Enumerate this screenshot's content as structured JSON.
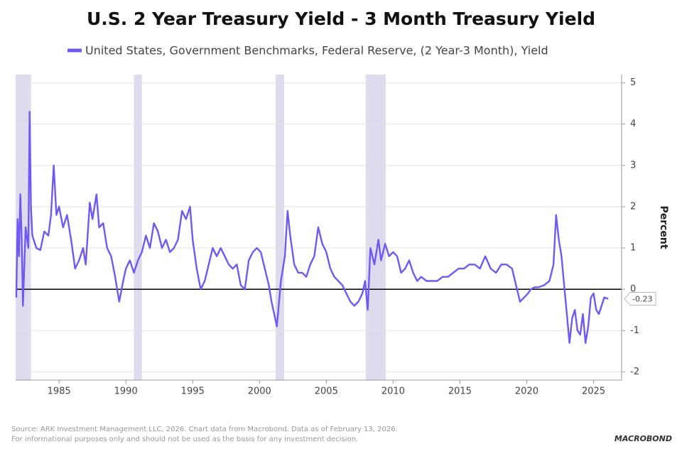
{
  "chart_data": {
    "type": "line",
    "title": "U.S. 2 Year Treasury Yield - 3 Month Treasury Yield",
    "y_axis_label": "Percent",
    "source": "Source: ARK Investment Management LLC, 2026. Chart data from Macrobond. Data as of February 13, 2026.",
    "disclaimer": "For informational purposes only and should not be used as the basis for any investment decision.",
    "logo": "MACROBOND",
    "xlim": [
      1981.75,
      2027.1
    ],
    "xticks": [
      1985,
      1990,
      1995,
      2000,
      2005,
      2010,
      2015,
      2020,
      2025
    ],
    "ylim": [
      -2.2,
      5.2
    ],
    "yticks": [
      5,
      4,
      3,
      2,
      1,
      0,
      -1,
      -2
    ],
    "grid": true,
    "recessions": [
      [
        1981.75,
        1982.9
      ],
      [
        1990.6,
        1991.2
      ],
      [
        2001.2,
        2001.85
      ],
      [
        2007.95,
        2009.45
      ]
    ],
    "x": [
      1981.8,
      1981.9,
      1982.0,
      1982.1,
      1982.2,
      1982.3,
      1982.5,
      1982.7,
      1982.8,
      1982.9,
      1983.0,
      1983.3,
      1983.6,
      1983.9,
      1984.2,
      1984.4,
      1984.6,
      1984.8,
      1985.0,
      1985.3,
      1985.6,
      1985.9,
      1986.2,
      1986.5,
      1986.8,
      1987.0,
      1987.3,
      1987.5,
      1987.8,
      1988.0,
      1988.3,
      1988.6,
      1988.9,
      1989.2,
      1989.5,
      1989.8,
      1990.0,
      1990.3,
      1990.6,
      1990.9,
      1991.2,
      1991.5,
      1991.8,
      1992.1,
      1992.4,
      1992.7,
      1993.0,
      1993.3,
      1993.6,
      1993.9,
      1994.2,
      1994.5,
      1994.8,
      1995.0,
      1995.3,
      1995.6,
      1995.9,
      1996.2,
      1996.5,
      1996.8,
      1997.1,
      1997.4,
      1997.7,
      1998.0,
      1998.3,
      1998.6,
      1998.9,
      1999.2,
      1999.5,
      1999.8,
      2000.1,
      2000.4,
      2000.7,
      2000.9,
      2001.1,
      2001.3,
      2001.6,
      2001.9,
      2002.1,
      2002.3,
      2002.6,
      2002.9,
      2003.2,
      2003.5,
      2003.8,
      2004.1,
      2004.4,
      2004.7,
      2005.0,
      2005.3,
      2005.6,
      2005.9,
      2006.2,
      2006.5,
      2006.8,
      2007.1,
      2007.4,
      2007.7,
      2007.9,
      2008.1,
      2008.3,
      2008.6,
      2008.9,
      2009.1,
      2009.4,
      2009.7,
      2010.0,
      2010.3,
      2010.6,
      2010.9,
      2011.2,
      2011.5,
      2011.8,
      2012.1,
      2012.5,
      2012.9,
      2013.3,
      2013.7,
      2014.1,
      2014.5,
      2014.9,
      2015.3,
      2015.7,
      2016.1,
      2016.5,
      2016.9,
      2017.3,
      2017.7,
      2018.1,
      2018.5,
      2018.9,
      2019.2,
      2019.5,
      2019.8,
      2020.1,
      2020.3,
      2020.6,
      2020.9,
      2021.3,
      2021.7,
      2022.0,
      2022.2,
      2022.4,
      2022.6,
      2022.8,
      2023.0,
      2023.2,
      2023.4,
      2023.6,
      2023.8,
      2024.0,
      2024.2,
      2024.4,
      2024.6,
      2024.8,
      2025.0,
      2025.2,
      2025.4,
      2025.6,
      2025.8,
      2026.1
    ],
    "series": [
      {
        "name": "United States, Government Benchmarks, Federal Reserve, (2 Year-3 Month), Yield",
        "color": "#7059f2",
        "values": [
          -0.2,
          1.7,
          0.8,
          2.3,
          1.2,
          -0.4,
          1.5,
          1.0,
          4.3,
          2.0,
          1.3,
          1.0,
          0.95,
          1.4,
          1.3,
          1.8,
          3.0,
          1.8,
          2.0,
          1.5,
          1.8,
          1.2,
          0.5,
          0.7,
          1.0,
          0.6,
          2.1,
          1.7,
          2.3,
          1.5,
          1.6,
          1.0,
          0.8,
          0.3,
          -0.3,
          0.2,
          0.5,
          0.7,
          0.4,
          0.7,
          0.9,
          1.3,
          1.0,
          1.6,
          1.4,
          1.0,
          1.2,
          0.9,
          1.0,
          1.2,
          1.9,
          1.7,
          2.0,
          1.2,
          0.5,
          0.0,
          0.2,
          0.6,
          1.0,
          0.8,
          1.0,
          0.8,
          0.6,
          0.5,
          0.6,
          0.1,
          0.0,
          0.7,
          0.9,
          1.0,
          0.9,
          0.5,
          0.1,
          -0.3,
          -0.6,
          -0.9,
          0.2,
          0.8,
          1.9,
          1.3,
          0.6,
          0.4,
          0.4,
          0.3,
          0.6,
          0.8,
          1.5,
          1.1,
          0.9,
          0.5,
          0.3,
          0.2,
          0.1,
          -0.1,
          -0.3,
          -0.4,
          -0.3,
          -0.1,
          0.2,
          -0.5,
          1.0,
          0.6,
          1.2,
          0.7,
          1.1,
          0.8,
          0.9,
          0.8,
          0.4,
          0.5,
          0.7,
          0.4,
          0.2,
          0.3,
          0.2,
          0.2,
          0.2,
          0.3,
          0.3,
          0.4,
          0.5,
          0.5,
          0.6,
          0.6,
          0.5,
          0.8,
          0.5,
          0.4,
          0.6,
          0.6,
          0.5,
          0.1,
          -0.3,
          -0.2,
          -0.1,
          0.0,
          0.05,
          0.05,
          0.1,
          0.2,
          0.6,
          1.8,
          1.2,
          0.8,
          0.1,
          -0.6,
          -1.3,
          -0.7,
          -0.5,
          -1.0,
          -1.1,
          -0.6,
          -1.3,
          -0.9,
          -0.2,
          -0.1,
          -0.5,
          -0.6,
          -0.4,
          -0.2,
          -0.23
        ]
      }
    ]
  }
}
